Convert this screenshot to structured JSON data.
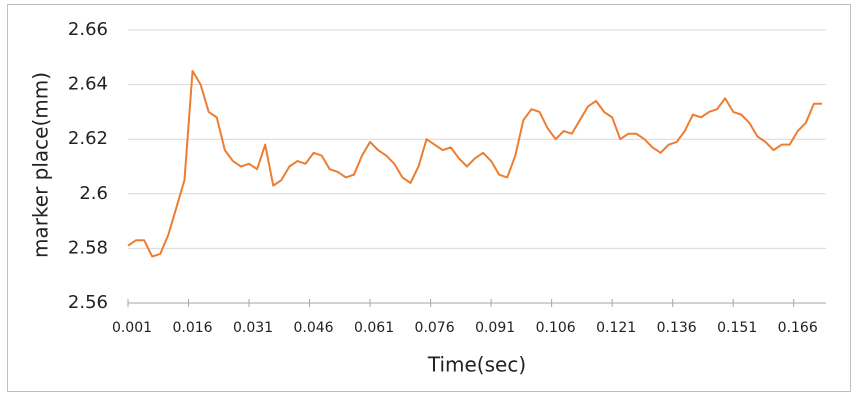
{
  "chart_data": {
    "type": "line",
    "xlabel": "Time(sec)",
    "ylabel": "marker place(mm)",
    "xlim": [
      0.001,
      0.174
    ],
    "xticks": [
      0.001,
      0.016,
      0.031,
      0.046,
      0.061,
      0.076,
      0.091,
      0.106,
      0.121,
      0.136,
      0.151,
      0.166
    ],
    "ylim": [
      2.56,
      2.66
    ],
    "yticks": [
      2.56,
      2.58,
      2.6,
      2.62,
      2.64,
      2.66
    ],
    "grid": true,
    "series": [
      {
        "color": "#ed7d31",
        "x": [
          0.001,
          0.003,
          0.005,
          0.007,
          0.009,
          0.011,
          0.013,
          0.015,
          0.017,
          0.019,
          0.021,
          0.023,
          0.025,
          0.027,
          0.029,
          0.031,
          0.033,
          0.035,
          0.037,
          0.039,
          0.041,
          0.043,
          0.045,
          0.047,
          0.049,
          0.051,
          0.053,
          0.055,
          0.057,
          0.059,
          0.061,
          0.063,
          0.065,
          0.067,
          0.069,
          0.071,
          0.073,
          0.075,
          0.077,
          0.079,
          0.081,
          0.083,
          0.085,
          0.087,
          0.089,
          0.091,
          0.093,
          0.095,
          0.097,
          0.099,
          0.101,
          0.103,
          0.105,
          0.107,
          0.109,
          0.111,
          0.113,
          0.115,
          0.117,
          0.119,
          0.121,
          0.123,
          0.125,
          0.127,
          0.129,
          0.131,
          0.133,
          0.135,
          0.137,
          0.139,
          0.141,
          0.143,
          0.145,
          0.147,
          0.149,
          0.151,
          0.153,
          0.155,
          0.157,
          0.159,
          0.161,
          0.163,
          0.165,
          0.167,
          0.169,
          0.171,
          0.173
        ],
        "values": [
          2.581,
          2.583,
          2.583,
          2.577,
          2.578,
          2.585,
          2.595,
          2.605,
          2.645,
          2.64,
          2.63,
          2.628,
          2.616,
          2.612,
          2.61,
          2.611,
          2.609,
          2.618,
          2.603,
          2.605,
          2.61,
          2.612,
          2.611,
          2.615,
          2.614,
          2.609,
          2.608,
          2.606,
          2.607,
          2.614,
          2.619,
          2.616,
          2.614,
          2.611,
          2.606,
          2.604,
          2.61,
          2.62,
          2.618,
          2.616,
          2.617,
          2.613,
          2.61,
          2.613,
          2.615,
          2.612,
          2.607,
          2.606,
          2.614,
          2.627,
          2.631,
          2.63,
          2.624,
          2.62,
          2.623,
          2.622,
          2.627,
          2.632,
          2.634,
          2.63,
          2.628,
          2.62,
          2.622,
          2.622,
          2.62,
          2.617,
          2.615,
          2.618,
          2.619,
          2.623,
          2.629,
          2.628,
          2.63,
          2.631,
          2.635,
          2.63,
          2.629,
          2.626,
          2.621,
          2.619,
          2.616,
          2.618,
          2.618,
          2.623,
          2.626,
          2.633,
          2.633
        ]
      }
    ]
  }
}
